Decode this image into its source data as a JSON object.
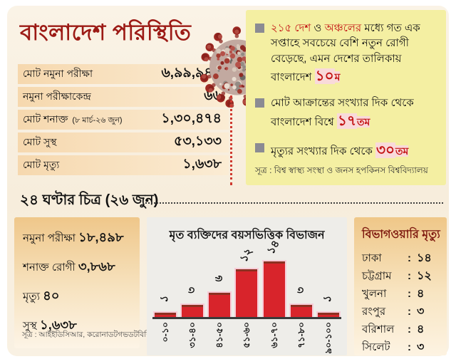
{
  "top": {
    "title": "বাংলাদেশ পরিস্থিতি",
    "stats": [
      {
        "label": "মোট নমুনা পরীক্ষা",
        "note": "",
        "value": "৬,৯৯,৯৪১"
      },
      {
        "label": "নমুনা পরীক্ষাকেন্দ্র",
        "note": "",
        "value": "৬৬"
      },
      {
        "label": "মোট শনাক্ত",
        "note": "(৮ মার্চ-২৬ জুন)",
        "value": "১,৩০,৪৭৪"
      },
      {
        "label": "মোট সুস্থ",
        "note": "",
        "value": "৫৩,১৩৩"
      },
      {
        "label": "মোট মৃত্যু",
        "note": "",
        "value": "১,৬৩৮"
      }
    ],
    "bullets": [
      {
        "segments": [
          {
            "text": "২১৫ দেশ",
            "style": "red"
          },
          {
            "text": " ও ",
            "style": "normal"
          },
          {
            "text": "অঞ্চলের",
            "style": "red"
          },
          {
            "text": " মধ্যে গত এক সপ্তাহে সবচেয়ে বেশি নতুন রোগী বেড়েছে, এমন দেশের তালিকায় বাংলাদেশ ",
            "style": "normal"
          },
          {
            "text": "১০",
            "style": "rank"
          },
          {
            "text": "ম",
            "style": "rank_suffix"
          }
        ]
      },
      {
        "segments": [
          {
            "text": "মোট আক্রান্তের সংখ্যার দিক থেকে বাংলাদেশ বিশ্বে ",
            "style": "normal"
          },
          {
            "text": "১৭",
            "style": "rank"
          },
          {
            "text": "তম",
            "style": "rank_suffix"
          }
        ]
      },
      {
        "segments": [
          {
            "text": "মৃত্যুর সংখ্যার দিক থেকে ",
            "style": "normal"
          },
          {
            "text": "৩০",
            "style": "rank"
          },
          {
            "text": "তম",
            "style": "rank_suffix"
          }
        ]
      }
    ],
    "source": "সূত্র : বিশ্ব স্বাস্থ্য সংস্থা ও জনস হপকিনস বিশ্ববিদ্যালয়"
  },
  "bottom": {
    "header": "২৪ ঘণ্টার চিত্র (২৬ জুন)",
    "daily": [
      {
        "label": "নমুনা পরীক্ষা",
        "value": "১৮,৪৯৮"
      },
      {
        "label": "শনাক্ত রোগী",
        "value": "৩,৮৬৮"
      },
      {
        "label": "মৃত্যু",
        "value": "৪০"
      },
      {
        "label": "সুস্থ",
        "value": "১,৬৩৮"
      }
    ],
    "daily_source": "সূত্র : আইইডিসিআর, করোনাডটগভডটবিডি",
    "divisions": {
      "title": "বিভাগওয়ারি মৃত্যু",
      "rows": [
        {
          "label": "ঢাকা",
          "value": "১৪"
        },
        {
          "label": "চট্টগ্রাম",
          "value": "১২"
        },
        {
          "label": "খুলনা",
          "value": "৪"
        },
        {
          "label": "রংপুর",
          "value": "৩"
        },
        {
          "label": "বরিশাল",
          "value": "৪"
        },
        {
          "label": "সিলেট",
          "value": "৩"
        }
      ]
    }
  },
  "chart_data": {
    "type": "bar",
    "title": "মৃত ব্যক্তিদের বয়সভিত্তিক বিভাজন",
    "categories": [
      "০-১০",
      "৩১-৪০",
      "৪১-৫০",
      "৫১-৬০",
      "৬১-৭০",
      "৭১-৮০",
      "৯০-১০০"
    ],
    "categories_en": [
      "0-10",
      "31-40",
      "41-50",
      "51-60",
      "61-70",
      "71-80",
      "90-100"
    ],
    "values": [
      1,
      3,
      6,
      12,
      14,
      3,
      1
    ],
    "value_labels": [
      "১",
      "৩",
      "৬",
      "১২",
      "১৪",
      "৩",
      "১"
    ],
    "xlabel": "",
    "ylabel": "",
    "ylim": [
      0,
      15
    ],
    "grid": false,
    "legend": "none",
    "bar_color": "#d8242b",
    "x_labels_rotated_90": true,
    "value_labels_rotated": true
  },
  "icons": {
    "bullet": "square-bullet",
    "virus": "coronavirus"
  },
  "colors": {
    "title_red": "#9c1a15",
    "accent_red": "#c31313",
    "card_bg": "#f8f0e0",
    "table_band": "#f6d8ae",
    "yellow_box": "#f4efa2",
    "bullet_gray": "#8b8b93",
    "orange_box_top": "#efc78a",
    "chart_bg": "#eeede9",
    "bar_red": "#d8242b",
    "bar_halo_pink": "#f8ccd8",
    "divisions_title": "#7d170e"
  }
}
